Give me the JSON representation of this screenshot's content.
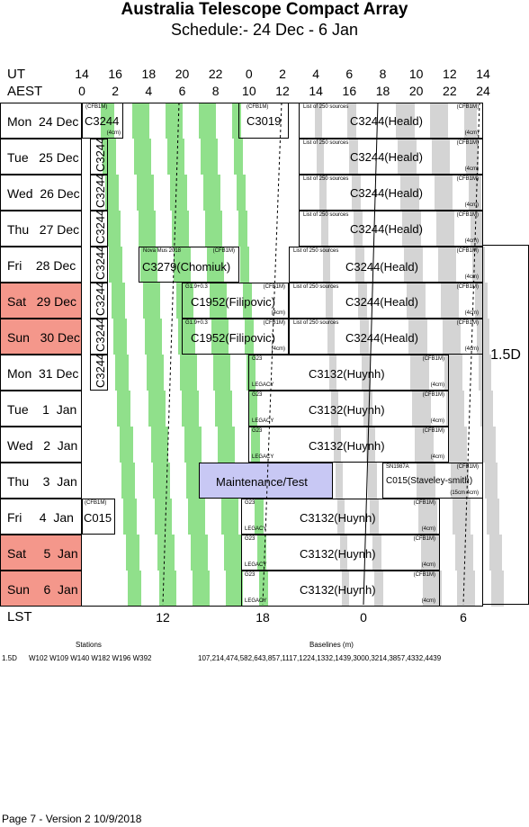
{
  "header": {
    "title": "Australia Telescope Compact Array",
    "subtitle": "Schedule:- 24 Dec - 6  Jan"
  },
  "axes": {
    "ut_label": "UT",
    "aest_label": "AEST",
    "lst_label": "LST",
    "ut_ticks": [
      "14",
      "16",
      "18",
      "20",
      "22",
      "0",
      "2",
      "4",
      "6",
      "8",
      "10",
      "12",
      "14"
    ],
    "aest_ticks": [
      "0",
      "2",
      "4",
      "6",
      "8",
      "10",
      "12",
      "14",
      "16",
      "18",
      "20",
      "22",
      "24"
    ],
    "lst_ticks": [
      "12",
      "18",
      "0",
      "6"
    ]
  },
  "days": [
    {
      "label": "Mon  24 Dec",
      "weekend": false
    },
    {
      "label": "Tue   25 Dec",
      "weekend": false
    },
    {
      "label": "Wed  26 Dec",
      "weekend": false
    },
    {
      "label": "Thu   27 Dec",
      "weekend": false
    },
    {
      "label": "Fri    28 Dec",
      "weekend": false
    },
    {
      "label": "Sat   29 Dec",
      "weekend": true
    },
    {
      "label": "Sun   30 Dec",
      "weekend": true
    },
    {
      "label": "Mon  31 Dec",
      "weekend": false
    },
    {
      "label": "Tue    1  Jan",
      "weekend": false
    },
    {
      "label": "Wed   2  Jan",
      "weekend": false
    },
    {
      "label": "Thu    3  Jan",
      "weekend": false
    },
    {
      "label": "Fri     4  Jan",
      "weekend": false
    },
    {
      "label": "Sat     5  Jan",
      "weekend": true
    },
    {
      "label": "Sun    6  Jan",
      "weekend": true
    }
  ],
  "blocks": {
    "c3244_mon": "C3244",
    "cfb1m": "(CFB1M)",
    "cm4": "(4cm)",
    "c3019": "C3019",
    "list250": "List of 250 sources",
    "c3244_heald": "C3244(Heald)",
    "c3244": "C3244",
    "nova": "Nova Mus 2018",
    "c3279": "C3279(Chomiuk)",
    "g1": "G1.9+0.3",
    "c1952": "C1952(Filipovic)",
    "c1952b": "C1952(Filipovic)",
    "g23": "G23",
    "legacy": "LEGACY",
    "c3132": "C3132(Huynh)",
    "maint": "Maintenance/Test",
    "sn": "SN1987A",
    "c015_slav": "C015(Staveley-smith)",
    "cm15": "(15cm 4cm)",
    "c015": "C015"
  },
  "config_label": "1.5D",
  "footer": {
    "stations_label": "Stations",
    "baselines_label": "Baselines (m)",
    "config": "1.5D",
    "stations": "W102 W109 W140 W182 W196 W392",
    "baselines": "107,214,474,582,643,857,1117,1224,1332,1439,3000,3214,3857,4332,4439",
    "page_info": "Page 7 - Version 2  10/9/2018"
  }
}
